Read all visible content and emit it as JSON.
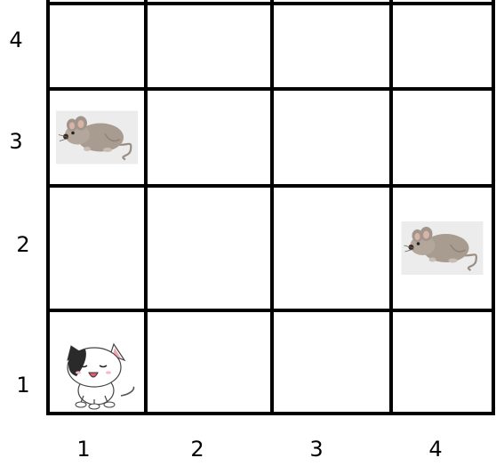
{
  "grid": {
    "rows": 4,
    "cols": 4,
    "row_labels": [
      "1",
      "2",
      "3",
      "4"
    ],
    "col_labels": [
      "1",
      "2",
      "3",
      "4"
    ],
    "line_color": "#000000"
  },
  "pieces": [
    {
      "kind": "cat-icon",
      "col": 1,
      "row": 1
    },
    {
      "kind": "mouse-icon",
      "col": 1,
      "row": 3
    },
    {
      "kind": "mouse-icon",
      "col": 4,
      "row": 2
    }
  ]
}
